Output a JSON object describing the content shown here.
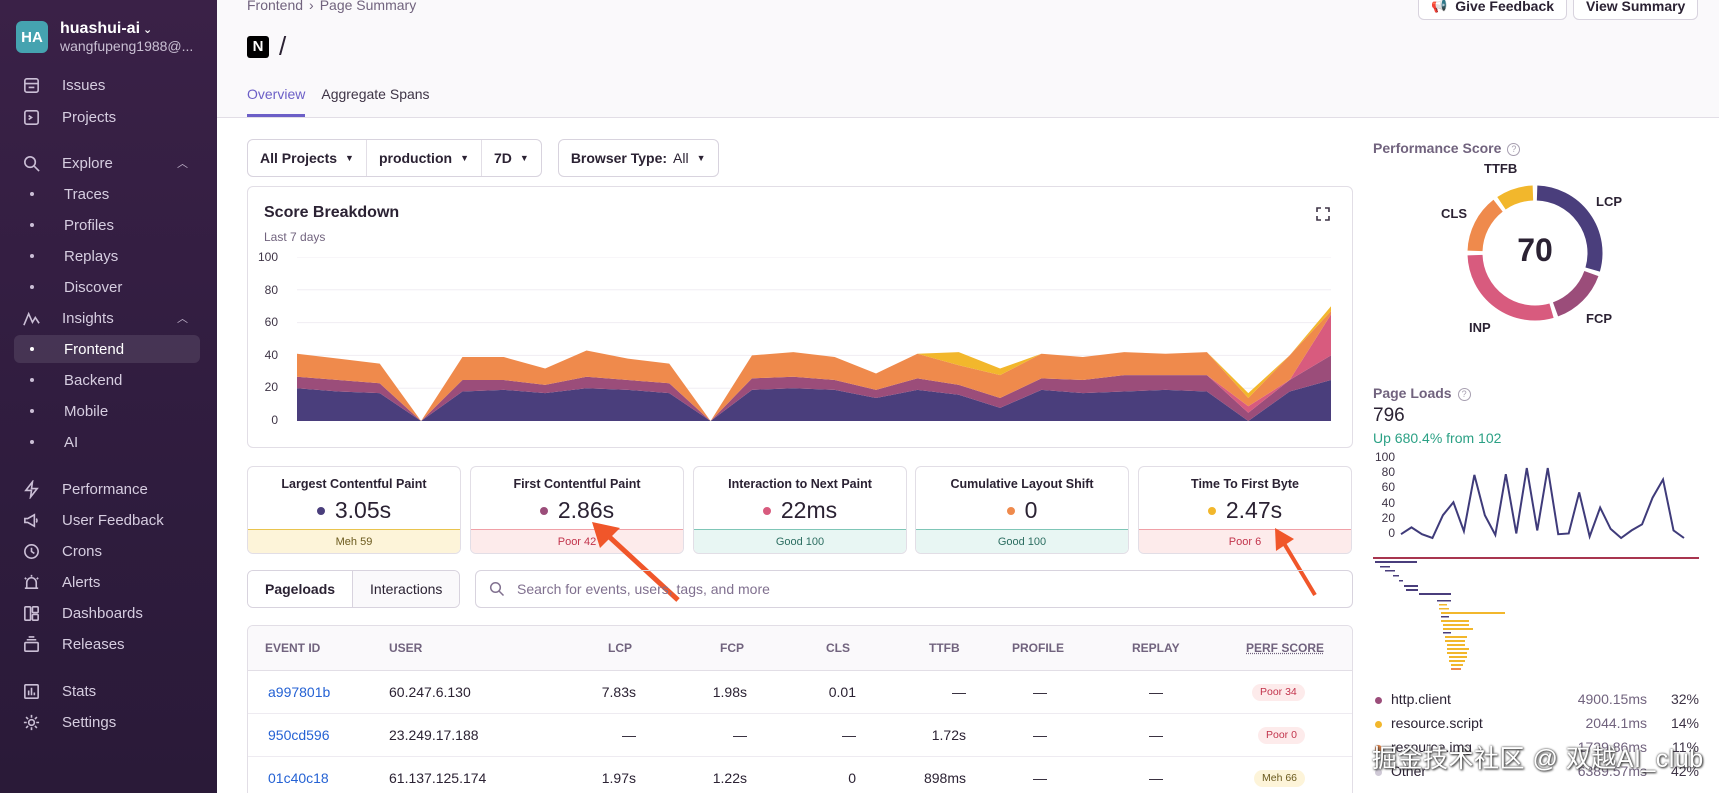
{
  "org": {
    "initials": "HA",
    "name": "huashui-ai",
    "email": "wangfupeng1988@..."
  },
  "nav": {
    "issues": "Issues",
    "projects": "Projects",
    "explore": "Explore",
    "traces": "Traces",
    "profiles": "Profiles",
    "replays": "Replays",
    "discover": "Discover",
    "insights": "Insights",
    "frontend": "Frontend",
    "backend": "Backend",
    "mobile": "Mobile",
    "ai": "AI",
    "performance": "Performance",
    "user_feedback": "User Feedback",
    "crons": "Crons",
    "alerts": "Alerts",
    "dashboards": "Dashboards",
    "releases": "Releases",
    "stats": "Stats",
    "settings": "Settings"
  },
  "header": {
    "breadcrumb": [
      "Frontend",
      "Page Summary"
    ],
    "title": "/",
    "tabs": [
      "Overview",
      "Aggregate Spans"
    ],
    "give_feedback": "Give Feedback",
    "view_summary": "View Summary"
  },
  "filters": {
    "projects": "All Projects",
    "environment": "production",
    "period": "7D",
    "browser_label": "Browser Type:",
    "browser_value": "All"
  },
  "score_breakdown": {
    "title": "Score Breakdown",
    "subtitle": "Last 7 days",
    "yticks": [
      "100",
      "80",
      "60",
      "40",
      "20",
      "0"
    ]
  },
  "vitals": [
    {
      "name": "Largest Contentful Paint",
      "value": "3.05s",
      "status": "Meh 59",
      "dot": "#4a3e7c"
    },
    {
      "name": "First Contentful Paint",
      "value": "2.86s",
      "status": "Poor 42",
      "dot": "#9b4d7a"
    },
    {
      "name": "Interaction to Next Paint",
      "value": "22ms",
      "status": "Good 100",
      "dot": "#d85b7e"
    },
    {
      "name": "Cumulative Layout Shift",
      "value": "0",
      "status": "Good 100",
      "dot": "#ef8a4c"
    },
    {
      "name": "Time To First Byte",
      "value": "2.47s",
      "status": "Poor 6",
      "dot": "#f2b72c"
    }
  ],
  "events_tabs": {
    "pageloads": "Pageloads",
    "interactions": "Interactions"
  },
  "search": {
    "placeholder": "Search for events, users, tags, and more"
  },
  "table": {
    "headers": [
      "EVENT ID",
      "USER",
      "LCP",
      "FCP",
      "CLS",
      "TTFB",
      "PROFILE",
      "REPLAY",
      "PERF SCORE"
    ],
    "rows": [
      {
        "event": "a997801b",
        "user": "60.247.6.130",
        "lcp": "7.83s",
        "fcp": "1.98s",
        "cls": "0.01",
        "ttfb": "—",
        "profile": "—",
        "replay": "—",
        "score": "Poor 34"
      },
      {
        "event": "950cd596",
        "user": "23.249.17.188",
        "lcp": "—",
        "fcp": "—",
        "cls": "—",
        "ttfb": "1.72s",
        "profile": "—",
        "replay": "—",
        "score": "Poor 0"
      },
      {
        "event": "01c40c18",
        "user": "61.137.125.174",
        "lcp": "1.97s",
        "fcp": "1.22s",
        "cls": "0",
        "ttfb": "898ms",
        "profile": "—",
        "replay": "—",
        "score": "Meh 66"
      }
    ]
  },
  "performance_score": {
    "title": "Performance Score",
    "score": "70",
    "labels": {
      "ttfb": "TTFB",
      "lcp": "LCP",
      "cls": "CLS",
      "inp": "INP",
      "fcp": "FCP"
    }
  },
  "page_loads": {
    "title": "Page Loads",
    "value": "796",
    "delta": "Up 680.4% from 102",
    "yticks": [
      "100",
      "80",
      "60",
      "40",
      "20",
      "0"
    ]
  },
  "breakdown_legend": [
    {
      "name": "http.client",
      "time": "4900.15ms",
      "pct": "32%",
      "color": "#9b4d7a"
    },
    {
      "name": "resource.script",
      "time": "2044.1ms",
      "pct": "14%",
      "color": "#f2b72c"
    },
    {
      "name": "resource.img",
      "time": "1739.86ms",
      "pct": "11%",
      "color": "#ef8a4c"
    },
    {
      "name": "Other",
      "time": "6389.57ms",
      "pct": "42%",
      "color": "#cfc9d6"
    }
  ],
  "watermark": "掘金技术社区 @ 双越AI_club",
  "chart_data": [
    {
      "type": "area",
      "title": "Score Breakdown",
      "subtitle": "Last 7 days",
      "ylim": [
        0,
        100
      ],
      "stacked": true,
      "series": [
        {
          "name": "LCP",
          "color": "#4a3e7c",
          "values": [
            20,
            18,
            17,
            0,
            18,
            19,
            17,
            20,
            19,
            17,
            0,
            19,
            20,
            19,
            14,
            19,
            16,
            8,
            19,
            17,
            18,
            19,
            18,
            0,
            18,
            25
          ]
        },
        {
          "name": "FCP",
          "color": "#9b4d7a",
          "values": [
            7,
            7,
            6,
            0,
            7,
            6,
            5,
            7,
            6,
            6,
            0,
            7,
            7,
            6,
            5,
            7,
            6,
            6,
            7,
            8,
            10,
            9,
            10,
            5,
            7,
            15
          ]
        },
        {
          "name": "INP",
          "color": "#d85b7e",
          "values": [
            0,
            0,
            0,
            0,
            0,
            0,
            0,
            0,
            0,
            0,
            0,
            0,
            0,
            0,
            0,
            0,
            0,
            0,
            0,
            0,
            0,
            0,
            0,
            4,
            0,
            25
          ]
        },
        {
          "name": "CLS",
          "color": "#ef8a4c",
          "values": [
            14,
            13,
            12,
            0,
            14,
            14,
            10,
            16,
            13,
            12,
            0,
            14,
            15,
            14,
            10,
            15,
            12,
            14,
            15,
            14,
            14,
            13,
            14,
            5,
            15,
            2
          ]
        },
        {
          "name": "TTFB",
          "color": "#f2b72c",
          "values": [
            0,
            0,
            0,
            0,
            0,
            0,
            0,
            0,
            0,
            0,
            0,
            0,
            0,
            0,
            0,
            0,
            8,
            4,
            0,
            0,
            0,
            0,
            0,
            3,
            0,
            3
          ]
        }
      ]
    },
    {
      "type": "pie",
      "title": "Performance Score",
      "center_value": 70,
      "categories": [
        "LCP",
        "FCP",
        "INP",
        "CLS",
        "TTFB"
      ],
      "values": [
        30,
        15,
        30,
        15,
        10
      ],
      "colors": [
        "#4a3e7c",
        "#9b4d7a",
        "#d85b7e",
        "#ef8a4c",
        "#f2b72c"
      ]
    },
    {
      "type": "line",
      "title": "Page Loads",
      "ylim": [
        0,
        100
      ],
      "values": [
        5,
        14,
        5,
        0,
        30,
        47,
        9,
        83,
        30,
        4,
        84,
        6,
        92,
        10,
        92,
        5,
        6,
        60,
        2,
        40,
        12,
        0,
        10,
        18,
        53,
        77,
        10,
        0
      ]
    }
  ]
}
